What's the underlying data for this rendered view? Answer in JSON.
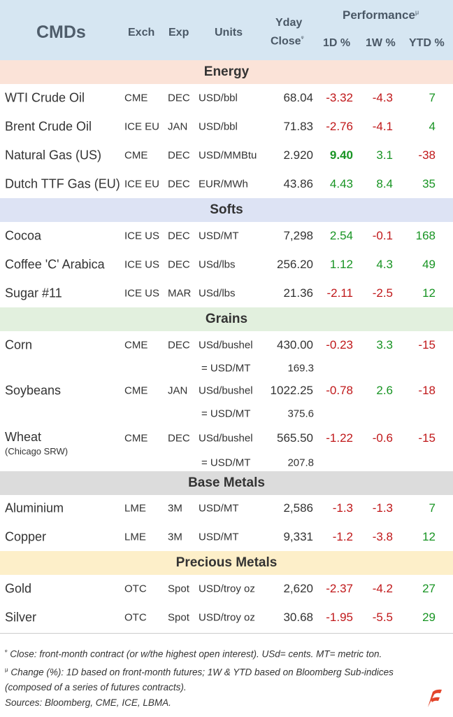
{
  "header": {
    "title": "CMDs",
    "exch": "Exch",
    "exp": "Exp",
    "units": "Units",
    "close_line1": "Yday",
    "close_line2": "Close",
    "close_mark": "ᵠ",
    "performance": "Performance",
    "perf_mark": "μ",
    "d1": "1D %",
    "w1": "1W %",
    "ytd": "YTD %"
  },
  "colors": {
    "header_bg": "#d6e6f2",
    "energy_bg": "#fbe3d8",
    "softs_bg": "#dde3f4",
    "grains_bg": "#e2f0de",
    "base_bg": "#dcdcdc",
    "precious_bg": "#fdefc9",
    "positive": "#189423",
    "negative": "#c0181a"
  },
  "sections": [
    {
      "label": "Energy",
      "rows": [
        {
          "name": "WTI Crude Oil",
          "exch": "CME",
          "exp": "DEC",
          "units": "USD/bbl",
          "close": "68.04",
          "d1": "-3.32",
          "w1": "-4.3",
          "ytd": "7"
        },
        {
          "name": "Brent Crude Oil",
          "exch": "ICE EU",
          "exp": "JAN",
          "units": "USD/bbl",
          "close": "71.83",
          "d1": "-2.76",
          "w1": "-4.1",
          "ytd": "4"
        },
        {
          "name": "Natural Gas (US)",
          "exch": "CME",
          "exp": "DEC",
          "units": "USD/MMBtu",
          "close": "2.920",
          "d1": "9.40",
          "w1": "3.1",
          "ytd": "-38"
        },
        {
          "name": "Dutch TTF Gas (EU)",
          "exch": "ICE EU",
          "exp": "DEC",
          "units": "EUR/MWh",
          "close": "43.86",
          "d1": "4.43",
          "w1": "8.4",
          "ytd": "35"
        }
      ]
    },
    {
      "label": "Softs",
      "rows": [
        {
          "name": "Cocoa",
          "exch": "ICE US",
          "exp": "DEC",
          "units": "USD/MT",
          "close": "7,298",
          "d1": "2.54",
          "w1": "-0.1",
          "ytd": "168"
        },
        {
          "name": "Coffee 'C' Arabica",
          "exch": "ICE US",
          "exp": "DEC",
          "units": "USd/lbs",
          "close": "256.20",
          "d1": "1.12",
          "w1": "4.3",
          "ytd": "49"
        },
        {
          "name": "Sugar #11",
          "exch": "ICE US",
          "exp": "MAR",
          "units": "USd/lbs",
          "close": "21.36",
          "d1": "-2.11",
          "w1": "-2.5",
          "ytd": "12"
        }
      ]
    },
    {
      "label": "Grains",
      "rows": [
        {
          "name": "Corn",
          "exch": "CME",
          "exp": "DEC",
          "units": "USd/bushel",
          "close": "430.00",
          "d1": "-0.23",
          "w1": "3.3",
          "ytd": "-15",
          "conv_units": "= USD/MT",
          "conv_close": "169.3"
        },
        {
          "name": "Soybeans",
          "exch": "CME",
          "exp": "JAN",
          "units": "USd/bushel",
          "close": "1022.25",
          "d1": "-0.78",
          "w1": "2.6",
          "ytd": "-18",
          "conv_units": "= USD/MT",
          "conv_close": "375.6"
        },
        {
          "name": "Wheat",
          "sub": "(Chicago SRW)",
          "exch": "CME",
          "exp": "DEC",
          "units": "USd/bushel",
          "close": "565.50",
          "d1": "-1.22",
          "w1": "-0.6",
          "ytd": "-15",
          "conv_units": "= USD/MT",
          "conv_close": "207.8"
        }
      ]
    },
    {
      "label": "Base Metals",
      "rows": [
        {
          "name": "Aluminium",
          "exch": "LME",
          "exp": "3M",
          "units": "USD/MT",
          "close": "2,586",
          "d1": "-1.3",
          "w1": "-1.3",
          "ytd": "7"
        },
        {
          "name": "Copper",
          "exch": "LME",
          "exp": "3M",
          "units": "USD/MT",
          "close": "9,331",
          "d1": "-1.2",
          "w1": "-3.8",
          "ytd": "12"
        }
      ]
    },
    {
      "label": "Precious Metals",
      "rows": [
        {
          "name": "Gold",
          "exch": "OTC",
          "exp": "Spot",
          "units": "USD/troy oz",
          "close": "2,620",
          "d1": "-2.37",
          "w1": "-4.2",
          "ytd": "27"
        },
        {
          "name": "Silver",
          "exch": "OTC",
          "exp": "Spot",
          "units": "USD/troy oz",
          "close": "30.68",
          "d1": "-1.95",
          "w1": "-5.5",
          "ytd": "29"
        }
      ]
    }
  ],
  "footer": {
    "note1_mark": "ᵠ",
    "note1": "Close: front-month contract (or w/the highest open interest). USd= cents. MT= metric ton.",
    "note2_mark": "μ",
    "note2": "Change (%): 1D based on front-month futures; 1W & YTD based on Bloomberg Sub-indices (composed of a series of futures contracts).",
    "sources": "Sources: Bloomberg, CME, ICE, LBMA."
  },
  "logo_icon": "flag-logo-icon"
}
